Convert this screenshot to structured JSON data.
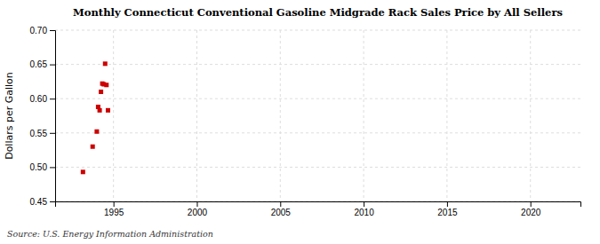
{
  "chart_data": {
    "type": "scatter",
    "title": "Monthly Connecticut Conventional Gasoline Midgrade Rack Sales Price by All Sellers",
    "ylabel": "Dollars per Gallon",
    "annotations": [
      "Source: U.S. Energy Information Administration"
    ],
    "x": [
      1993.17,
      1993.75,
      1994.0,
      1994.08,
      1994.17,
      1994.25,
      1994.33,
      1994.42,
      1994.5,
      1994.58,
      1994.67
    ],
    "values": [
      0.493,
      0.53,
      0.552,
      0.588,
      0.583,
      0.61,
      0.622,
      0.621,
      0.651,
      0.62,
      0.583
    ],
    "color": "#cc0000",
    "marker": "square",
    "xlim": [
      1991.5,
      2023
    ],
    "ylim": [
      0.45,
      0.7
    ],
    "xticks": [
      1995,
      2000,
      2005,
      2010,
      2015,
      2020
    ],
    "yticks": [
      0.45,
      {
        "value": 0.5,
        "label": "0.50"
      },
      0.55,
      {
        "value": 0.6,
        "label": "0.60"
      },
      0.65,
      {
        "value": 0.7,
        "label": "0.70"
      }
    ],
    "grid": true
  }
}
